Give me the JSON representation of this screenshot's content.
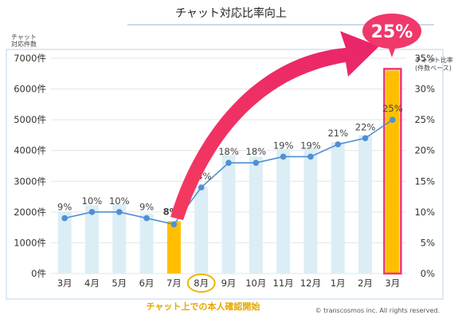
{
  "chart_data": {
    "type": "bar",
    "title": "チャット対応比率向上",
    "left_axis_label": [
      "チャット",
      "対応件数"
    ],
    "right_axis_label": [
      "チャット比率",
      "(件数ベース)"
    ],
    "left_ticks": [
      "0件",
      "1000件",
      "2000件",
      "3000件",
      "4000件",
      "5000件",
      "6000件",
      "7000件"
    ],
    "right_ticks": [
      "0%",
      "5%",
      "10%",
      "15%",
      "20%",
      "25%",
      "30%",
      "35%"
    ],
    "ylim_left": [
      0,
      7000
    ],
    "ylim_right": [
      0,
      35
    ],
    "categories": [
      "3月",
      "4月",
      "5月",
      "6月",
      "7月",
      "8月",
      "9月",
      "10月",
      "11月",
      "12月",
      "1月",
      "2月",
      "3月"
    ],
    "series": [
      {
        "kind": "bar",
        "values": [
          2020,
          2220,
          2270,
          1950,
          1700,
          2820,
          3850,
          3800,
          4050,
          4100,
          4280,
          4500,
          6600
        ]
      },
      {
        "kind": "line",
        "values": [
          9,
          10,
          10,
          9,
          8,
          14,
          18,
          18,
          19,
          19,
          21,
          22,
          25
        ],
        "labels": [
          "9%",
          "10%",
          "10%",
          "9%",
          "8%",
          "14%",
          "18%",
          "18%",
          "19%",
          "19%",
          "21%",
          "22%",
          "25%"
        ]
      }
    ],
    "highlight_bars": [
      4,
      12
    ],
    "circled_category": 5,
    "annotation": "チャット上での本人確認開始",
    "callout": "25%",
    "colors": {
      "bar": "#dbeef5",
      "bar_highlight": "#ffbf00",
      "line": "#4f8fd4",
      "accent": "#f0386b",
      "circle": "#f2b400",
      "annotation": "#e6a700"
    }
  },
  "copyright": "© transcosmos inc. All rights reserved."
}
